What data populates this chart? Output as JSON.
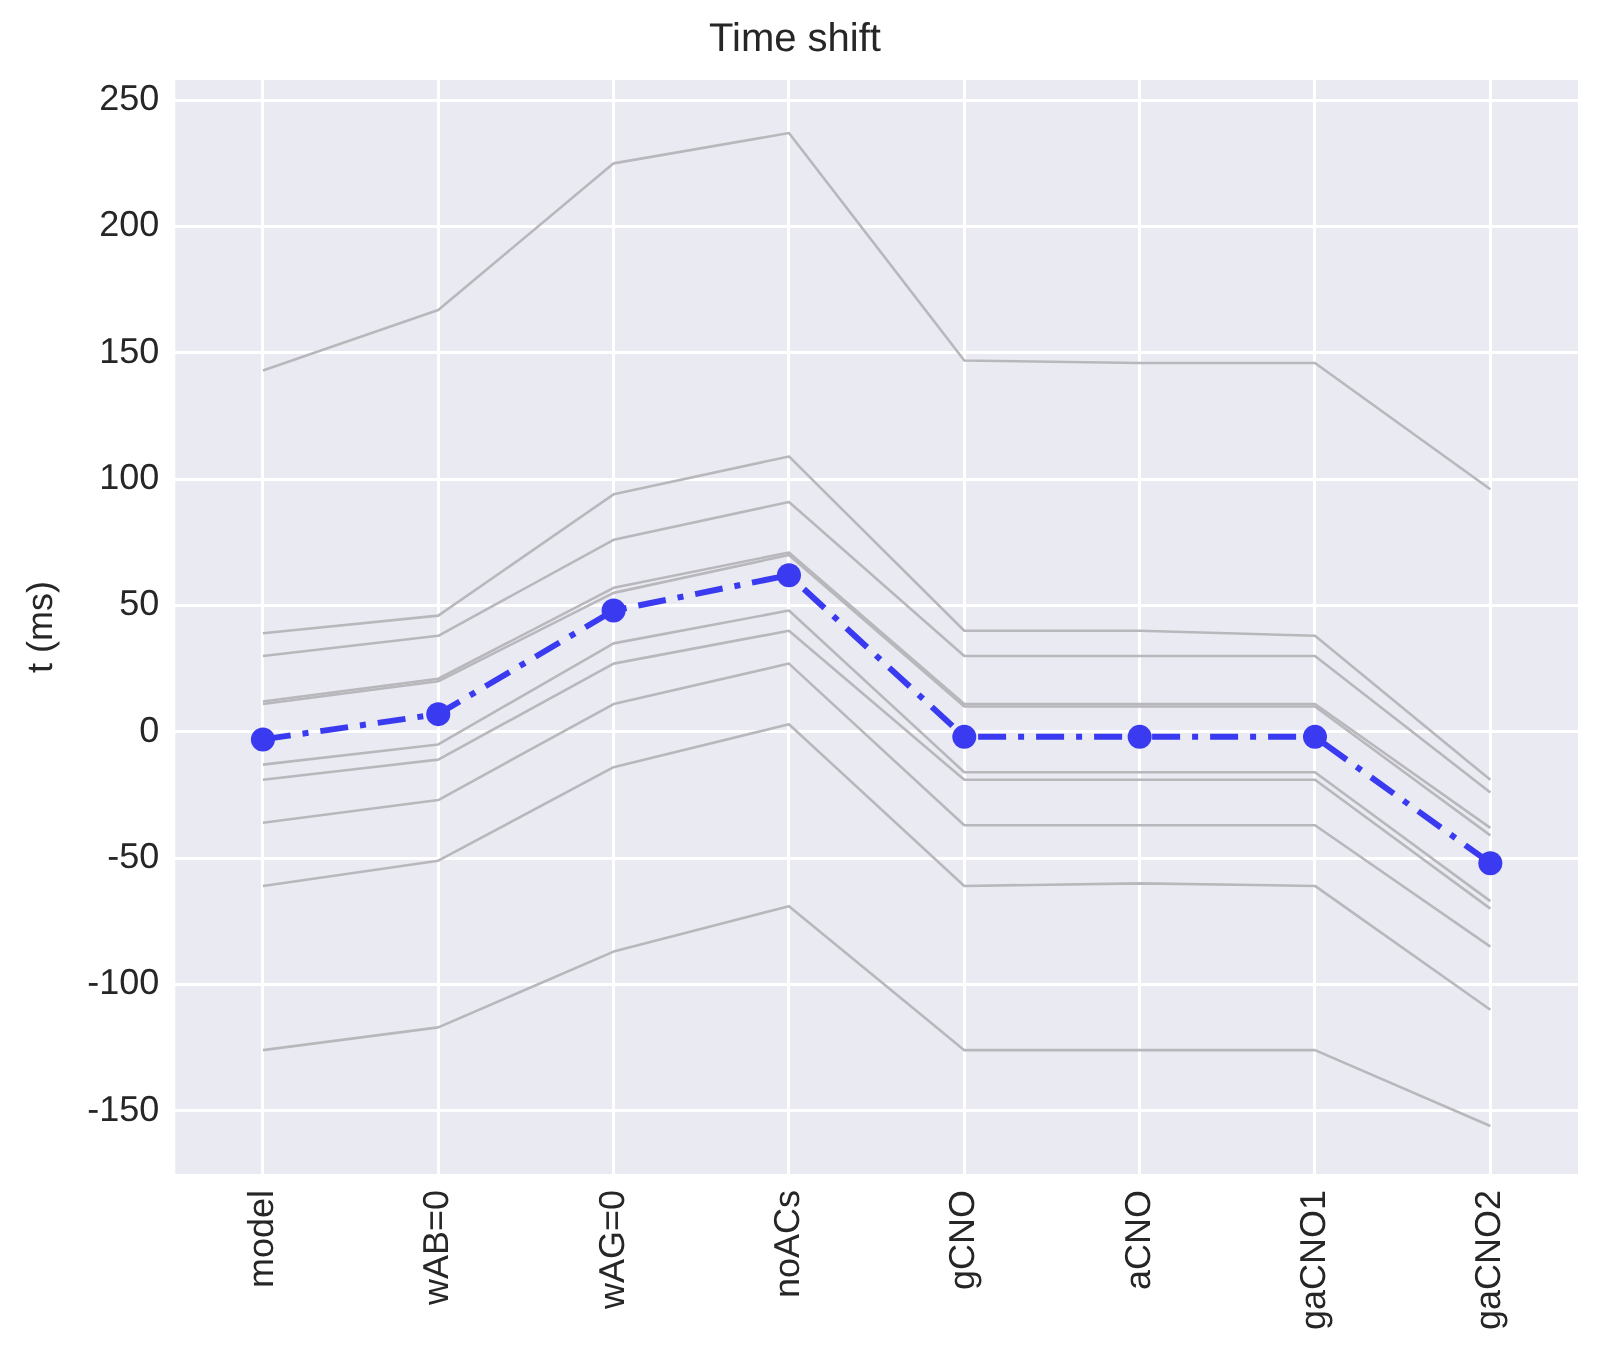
{
  "chart_data": {
    "type": "line",
    "title": "Time shift",
    "ylabel": "t (ms)",
    "categories": [
      "model",
      "wAB=0",
      "wAG=0",
      "noACs",
      "gCNO",
      "aCNO",
      "gaCNO1",
      "gaCNO2"
    ],
    "ylim": [
      -175,
      258
    ],
    "yticks": [
      -150,
      -100,
      -50,
      0,
      50,
      100,
      150,
      200,
      250
    ],
    "grid": true,
    "legend": false,
    "series": [
      {
        "color": "#b8b8bc",
        "line_style": "solid",
        "marker": "none",
        "values": [
          143,
          167,
          225,
          237,
          147,
          146,
          146,
          96
        ]
      },
      {
        "color": "#b8b8bc",
        "line_style": "solid",
        "marker": "none",
        "values": [
          39,
          46,
          94,
          109,
          40,
          40,
          38,
          -19
        ]
      },
      {
        "color": "#b8b8bc",
        "line_style": "solid",
        "marker": "none",
        "values": [
          30,
          38,
          76,
          91,
          30,
          30,
          30,
          -24
        ]
      },
      {
        "color": "#b8b8bc",
        "line_style": "solid",
        "marker": "none",
        "values": [
          12,
          21,
          57,
          71,
          11,
          11,
          11,
          -38
        ]
      },
      {
        "color": "#b8b8bc",
        "line_style": "solid",
        "marker": "none",
        "values": [
          11,
          20,
          55,
          70,
          10,
          10,
          10,
          -41
        ]
      },
      {
        "color": "#b8b8bc",
        "line_style": "solid",
        "marker": "none",
        "values": [
          -13,
          -5,
          35,
          48,
          -16,
          -16,
          -16,
          -67
        ]
      },
      {
        "color": "#b8b8bc",
        "line_style": "solid",
        "marker": "none",
        "values": [
          -19,
          -11,
          27,
          40,
          -19,
          -19,
          -19,
          -70
        ]
      },
      {
        "color": "#b8b8bc",
        "line_style": "solid",
        "marker": "none",
        "values": [
          -36,
          -27,
          11,
          27,
          -37,
          -37,
          -37,
          -85
        ]
      },
      {
        "color": "#b8b8bc",
        "line_style": "solid",
        "marker": "none",
        "values": [
          -61,
          -51,
          -14,
          3,
          -61,
          -60,
          -61,
          -110
        ]
      },
      {
        "color": "#b8b8bc",
        "line_style": "solid",
        "marker": "none",
        "values": [
          -126,
          -117,
          -87,
          -69,
          -126,
          -126,
          -126,
          -156
        ]
      },
      {
        "color": "#3a3af0",
        "line_style": "dashdot",
        "marker": "circle",
        "values": [
          -3,
          7,
          48,
          62,
          -2,
          -2,
          -2,
          -52
        ]
      }
    ]
  }
}
